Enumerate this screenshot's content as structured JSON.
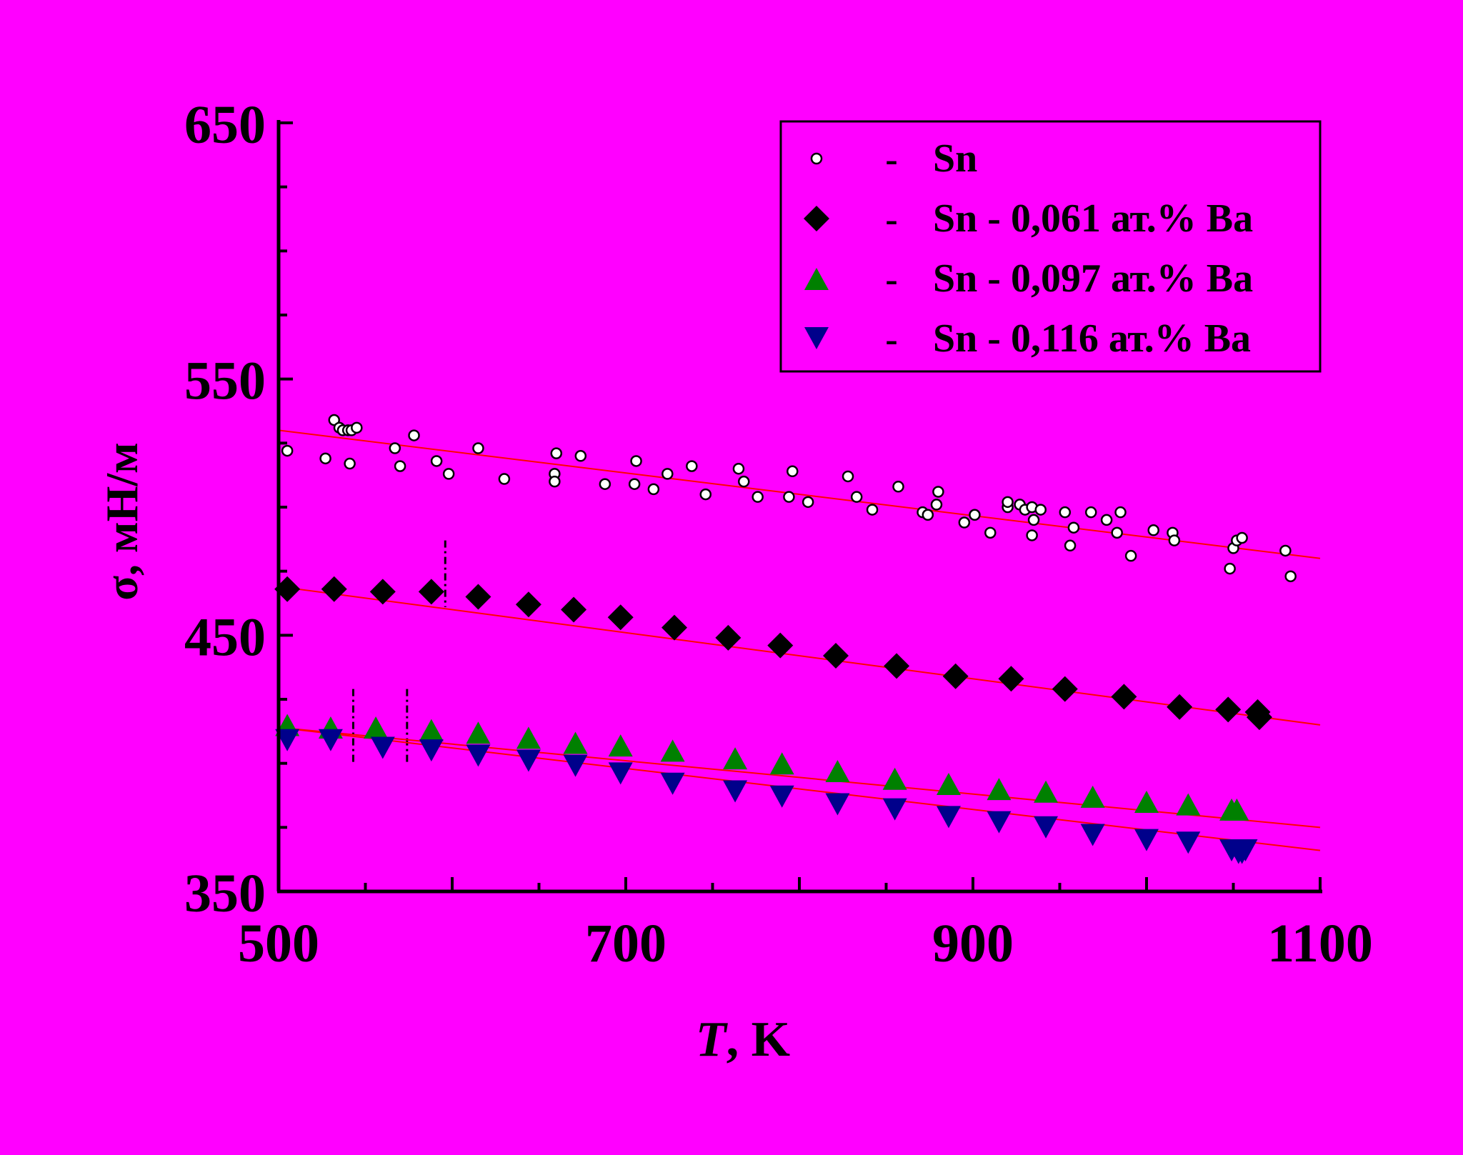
{
  "chart_data": {
    "type": "scatter",
    "title": "",
    "xlabel_italic": "T",
    "xlabel_rest": ", K",
    "ylabel": "σ, мН/м",
    "xlim": [
      500,
      1100
    ],
    "ylim": [
      350,
      650
    ],
    "x_ticks": [
      500,
      700,
      900,
      1100
    ],
    "y_ticks": [
      350,
      450,
      550,
      650
    ],
    "grid": false,
    "legend_position": "top-right",
    "legend_dash": "-",
    "background": "#ff00ff",
    "fit_line_color": "#ff0000",
    "series": [
      {
        "name": "Sn",
        "marker": "circle",
        "color": "#ffffff",
        "points": [
          [
            505,
            522
          ],
          [
            527,
            519
          ],
          [
            532,
            534
          ],
          [
            535,
            531
          ],
          [
            537,
            530
          ],
          [
            540,
            530
          ],
          [
            541,
            517
          ],
          [
            542,
            530
          ],
          [
            545,
            531
          ],
          [
            567,
            523
          ],
          [
            570,
            516
          ],
          [
            578,
            528
          ],
          [
            591,
            518
          ],
          [
            598,
            513
          ],
          [
            615,
            523
          ],
          [
            630,
            511
          ],
          [
            659,
            513
          ],
          [
            659,
            510
          ],
          [
            660,
            521
          ],
          [
            674,
            520
          ],
          [
            688,
            509
          ],
          [
            705,
            509
          ],
          [
            706,
            518
          ],
          [
            716,
            507
          ],
          [
            724,
            513
          ],
          [
            738,
            516
          ],
          [
            746,
            505
          ],
          [
            765,
            515
          ],
          [
            768,
            510
          ],
          [
            776,
            504
          ],
          [
            794,
            504
          ],
          [
            796,
            514
          ],
          [
            805,
            502
          ],
          [
            828,
            512
          ],
          [
            833,
            504
          ],
          [
            842,
            499
          ],
          [
            857,
            508
          ],
          [
            871,
            498
          ],
          [
            874,
            497
          ],
          [
            879,
            501
          ],
          [
            880,
            506
          ],
          [
            895,
            494
          ],
          [
            901,
            497
          ],
          [
            910,
            490
          ],
          [
            920,
            500
          ],
          [
            920,
            502
          ],
          [
            927,
            501
          ],
          [
            930,
            499
          ],
          [
            934,
            500
          ],
          [
            934,
            489
          ],
          [
            935,
            495
          ],
          [
            939,
            499
          ],
          [
            953,
            498
          ],
          [
            956,
            485
          ],
          [
            958,
            492
          ],
          [
            968,
            498
          ],
          [
            977,
            495
          ],
          [
            983,
            490
          ],
          [
            985,
            498
          ],
          [
            991,
            481
          ],
          [
            1004,
            491
          ],
          [
            1015,
            490
          ],
          [
            1016,
            487
          ],
          [
            1048,
            476
          ],
          [
            1050,
            484
          ],
          [
            1052,
            487
          ],
          [
            1055,
            488
          ],
          [
            1080,
            483
          ],
          [
            1083,
            473
          ]
        ],
        "fit": [
          [
            500,
            530
          ],
          [
            1100,
            480
          ]
        ]
      },
      {
        "name": "Sn - 0,061 ат.% Ba",
        "marker": "diamond",
        "color": "#000000",
        "points": [
          [
            505,
            468
          ],
          [
            532,
            468
          ],
          [
            560,
            467
          ],
          [
            588,
            467
          ],
          [
            615,
            465
          ],
          [
            644,
            462
          ],
          [
            670,
            460
          ],
          [
            697,
            457
          ],
          [
            728,
            453
          ],
          [
            759,
            449
          ],
          [
            789,
            446
          ],
          [
            821,
            442
          ],
          [
            856,
            438
          ],
          [
            890,
            434
          ],
          [
            922,
            433
          ],
          [
            953,
            429
          ],
          [
            987,
            426
          ],
          [
            1019,
            422
          ],
          [
            1047,
            421
          ],
          [
            1064,
            420
          ],
          [
            1065,
            418
          ]
        ],
        "fit": [
          [
            500,
            469
          ],
          [
            1100,
            415
          ]
        ]
      },
      {
        "name": "Sn - 0,097 ат.% Ba",
        "marker": "triangle-up",
        "color": "#008000",
        "points": [
          [
            505,
            414
          ],
          [
            530,
            413
          ],
          [
            556,
            413
          ],
          [
            588,
            412
          ],
          [
            615,
            411
          ],
          [
            644,
            409
          ],
          [
            671,
            407
          ],
          [
            697,
            406
          ],
          [
            727,
            404
          ],
          [
            763,
            401
          ],
          [
            790,
            399
          ],
          [
            822,
            396
          ],
          [
            855,
            393
          ],
          [
            886,
            391
          ],
          [
            915,
            389
          ],
          [
            942,
            388
          ],
          [
            969,
            386
          ],
          [
            1000,
            384
          ],
          [
            1024,
            383
          ],
          [
            1049,
            381
          ],
          [
            1052,
            381
          ]
        ],
        "fit": [
          [
            500,
            414
          ],
          [
            1100,
            375
          ]
        ]
      },
      {
        "name": "Sn - 0,116 ат.% Ba",
        "marker": "triangle-down",
        "color": "#00008b",
        "points": [
          [
            505,
            410
          ],
          [
            530,
            410
          ],
          [
            560,
            407
          ],
          [
            588,
            406
          ],
          [
            615,
            404
          ],
          [
            644,
            402
          ],
          [
            671,
            400
          ],
          [
            697,
            397
          ],
          [
            727,
            393
          ],
          [
            763,
            390
          ],
          [
            790,
            388
          ],
          [
            822,
            385
          ],
          [
            855,
            383
          ],
          [
            886,
            380
          ],
          [
            915,
            378
          ],
          [
            942,
            376
          ],
          [
            969,
            373
          ],
          [
            1000,
            371
          ],
          [
            1024,
            370
          ],
          [
            1049,
            367
          ],
          [
            1053,
            366
          ],
          [
            1055,
            366
          ],
          [
            1057,
            367
          ]
        ],
        "fit": [
          [
            500,
            414
          ],
          [
            1100,
            366
          ]
        ]
      }
    ],
    "markers_vertical": [
      {
        "x": 596,
        "y_range": [
          461,
          487
        ]
      },
      {
        "x": 543,
        "y_range": [
          400,
          429
        ]
      },
      {
        "x": 574,
        "y_range": [
          400,
          429
        ]
      }
    ]
  }
}
